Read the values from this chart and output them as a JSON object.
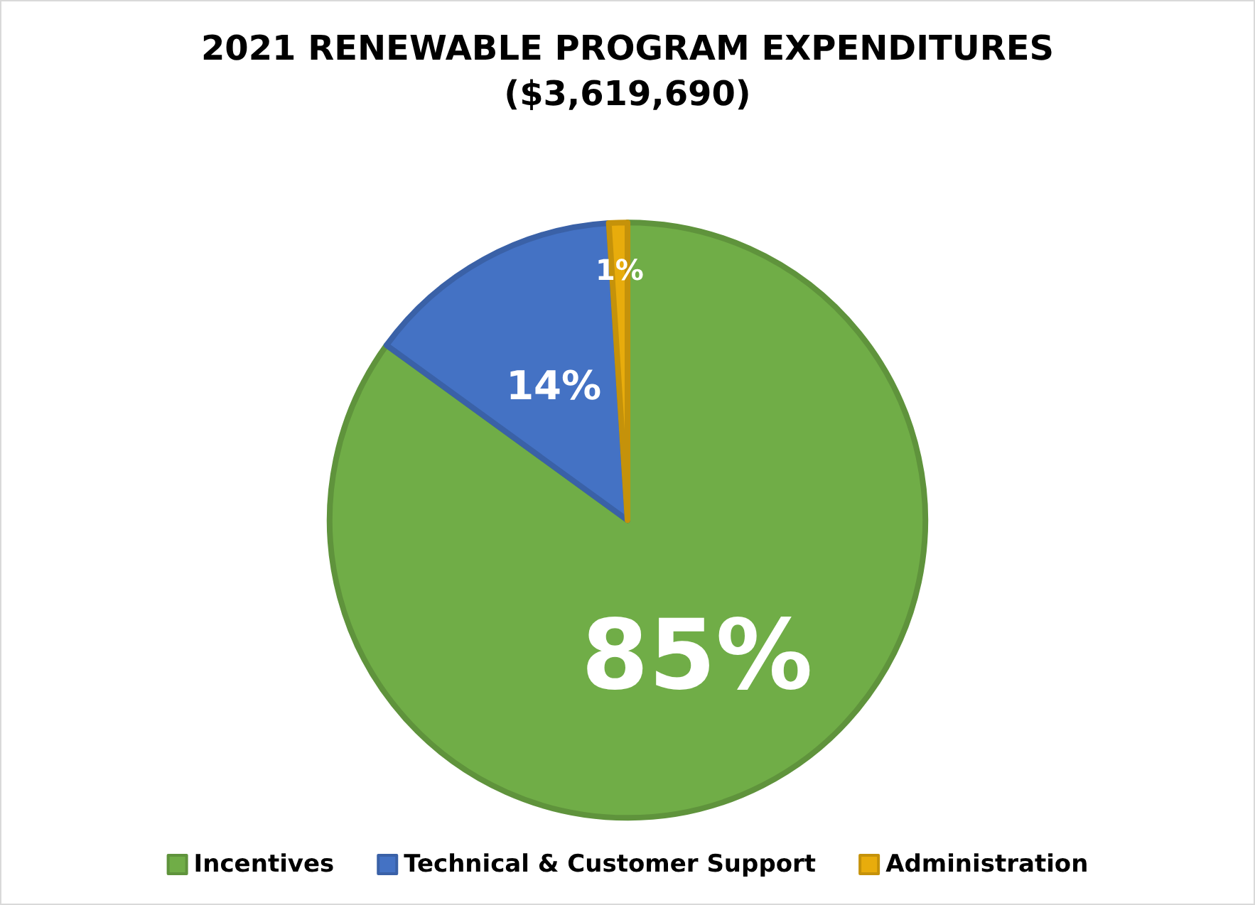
{
  "chart_data": {
    "type": "pie",
    "title": "2021 RENEWABLE PROGRAM EXPENDITURES",
    "subtitle": "($3,619,690)",
    "categories": [
      "Incentives",
      "Technical & Customer Support",
      "Administration"
    ],
    "values": [
      85,
      14,
      1
    ],
    "colors": [
      "#70ad47",
      "#4472c4",
      "#e8ac0c"
    ],
    "value_labels": [
      "85%",
      "14%",
      "1%"
    ],
    "legend": "bottom"
  }
}
